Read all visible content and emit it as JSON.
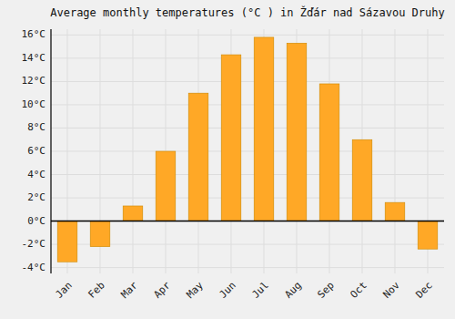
{
  "chart_data": {
    "type": "bar",
    "title": "Average monthly temperatures (°C ) in Žďár nad Sázavou Druhy",
    "categories": [
      "Jan",
      "Feb",
      "Mar",
      "Apr",
      "May",
      "Jun",
      "Jul",
      "Aug",
      "Sep",
      "Oct",
      "Nov",
      "Dec"
    ],
    "values": [
      -3.5,
      -2.2,
      1.3,
      6.0,
      11.0,
      14.3,
      15.8,
      15.3,
      11.8,
      7.0,
      1.6,
      -2.4
    ],
    "color": "#FFA826",
    "ylim": [
      -4.5,
      16.5
    ],
    "yticks": [
      {
        "value": -4,
        "label": "-4°C"
      },
      {
        "value": -2,
        "label": "-2°C"
      },
      {
        "value": 0,
        "label": "0°C"
      },
      {
        "value": 2,
        "label": "2°C"
      },
      {
        "value": 4,
        "label": "4°C"
      },
      {
        "value": 6,
        "label": "6°C"
      },
      {
        "value": 8,
        "label": "8°C"
      },
      {
        "value": 10,
        "label": "10°C"
      },
      {
        "value": 12,
        "label": "12°C"
      },
      {
        "value": 14,
        "label": "14°C"
      },
      {
        "value": 16,
        "label": "16°C"
      }
    ],
    "grid": true
  }
}
